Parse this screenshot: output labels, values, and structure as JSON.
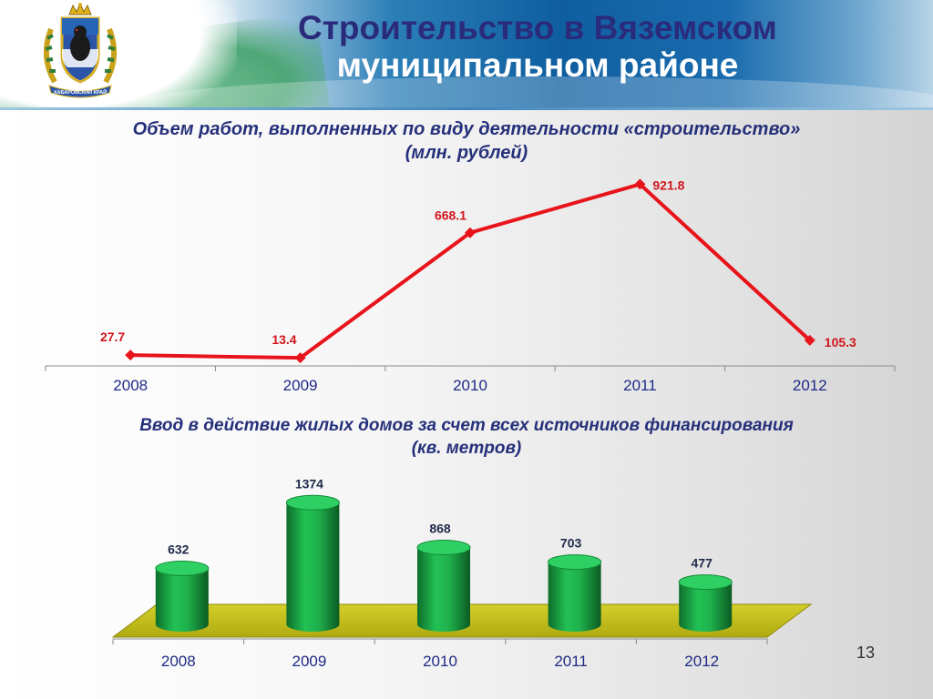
{
  "header": {
    "title_line1": "Строительство в Вяземском",
    "title_line2": "муниципальном районе",
    "emblem_icon": "khabarovsk-krai-coat-of-arms-icon",
    "emblem_ribbon_text": "ХАБАРОВСКИЙ КРАЙ"
  },
  "colors": {
    "title_blue": "#2b2b7c",
    "line_red": "#e8141b",
    "label_red": "#d0161c",
    "bar_green": "#19a542",
    "platform_yellow": "#c7c21a",
    "axis_text_blue": "#1f2a86"
  },
  "page_number": "13",
  "chart_data": [
    {
      "type": "line",
      "title_line1": "Объем работ, выполненных по виду деятельности «строительство»",
      "title_line2": "(млн. рублей)",
      "categories": [
        "2008",
        "2009",
        "2010",
        "2011",
        "2012"
      ],
      "series": [
        {
          "values": [
            27.7,
            13.4,
            668.1,
            921.8,
            105.3
          ]
        }
      ],
      "data_labels": [
        "27.7",
        "13.4",
        "668.1",
        "921.8",
        "105.3"
      ],
      "ylim": [
        0,
        1000
      ],
      "grid": false,
      "legend": "none"
    },
    {
      "type": "bar",
      "style": "3d-cylinder",
      "title_line1": "Ввод в действие жилых домов за счет всех источников финансирования",
      "title_line2": "(кв. метров)",
      "categories": [
        "2008",
        "2009",
        "2010",
        "2011",
        "2012"
      ],
      "series": [
        {
          "values": [
            632,
            1374,
            868,
            703,
            477
          ]
        }
      ],
      "data_labels": [
        "632",
        "1374",
        "868",
        "703",
        "477"
      ],
      "ylim": [
        0,
        1500
      ],
      "grid": false,
      "legend": "none"
    }
  ]
}
